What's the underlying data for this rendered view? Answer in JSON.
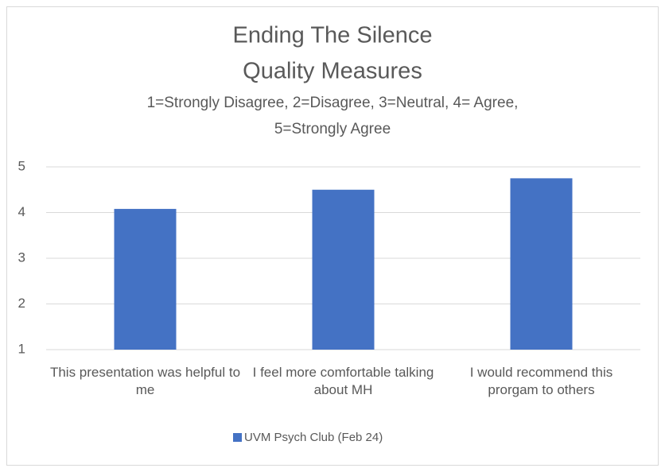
{
  "chart_data": {
    "type": "bar",
    "title": [
      "Ending The Silence",
      "Quality Measures"
    ],
    "subtitle": [
      "1=Strongly Disagree, 2=Disagree, 3=Neutral, 4= Agree,",
      "5=Strongly Agree"
    ],
    "categories": [
      "This presentation was helpful to me",
      "I feel more comfortable talking about MH",
      "I would recommend this prorgam to others"
    ],
    "series": [
      {
        "name": "UVM Psych Club (Feb 24)",
        "color": "#4472c4",
        "values": [
          4.08,
          4.5,
          4.75
        ]
      }
    ],
    "ylim": [
      1,
      5
    ],
    "yticks": [
      1,
      2,
      3,
      4,
      5
    ],
    "grid": true,
    "legend": "bottom"
  }
}
